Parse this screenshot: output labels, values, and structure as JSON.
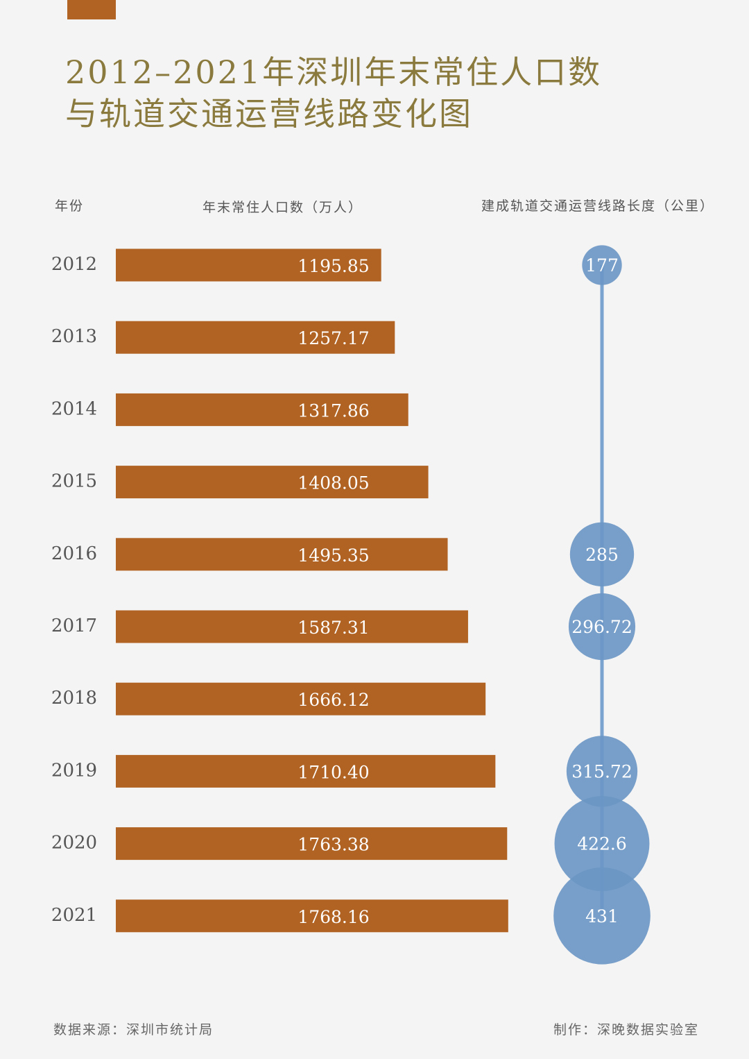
{
  "title": {
    "line1": "2012–2021年深圳年末常住人口数",
    "line2": "与轨道交通运营线路变化图"
  },
  "headers": {
    "year": "年份",
    "population": "年末常住人口数（万人）",
    "rail": "建成轨道交通运营线路长度（公里）"
  },
  "colors": {
    "accent": "#b06323",
    "bar": "#b06323",
    "bubble": "#6a96c4",
    "bubble_line": "#7aa3cf",
    "title": "#8a7a3e",
    "text": "#555555",
    "background": "#f4f4f4"
  },
  "chart_data": {
    "type": "bar",
    "title": "2012–2021年深圳年末常住人口数与轨道交通运营线路变化图",
    "categories": [
      "2012",
      "2013",
      "2014",
      "2015",
      "2016",
      "2017",
      "2018",
      "2019",
      "2020",
      "2021"
    ],
    "series": [
      {
        "name": "年末常住人口数（万人）",
        "type": "bar",
        "values": [
          1195.85,
          1257.17,
          1317.86,
          1408.05,
          1495.35,
          1587.31,
          1666.12,
          1710.4,
          1763.38,
          1768.16
        ],
        "labels": [
          "1195.85",
          "1257.17",
          "1317.86",
          "1408.05",
          "1495.35",
          "1587.31",
          "1666.12",
          "1710.40",
          "1763.38",
          "1768.16"
        ]
      },
      {
        "name": "建成轨道交通运营线路长度（公里）",
        "type": "bubble",
        "values": [
          177,
          null,
          null,
          null,
          285,
          296.72,
          null,
          315.72,
          422.6,
          431
        ],
        "labels": [
          "177",
          "",
          "",
          "",
          "285",
          "296.72",
          "",
          "315.72",
          "422.6",
          "431"
        ]
      }
    ],
    "xlabel": "年份",
    "ylabel": "年末常住人口数（万人）",
    "grid": false
  },
  "footer": {
    "source": "数据来源：深圳市统计局",
    "credit": "制作：深晚数据实验室"
  }
}
